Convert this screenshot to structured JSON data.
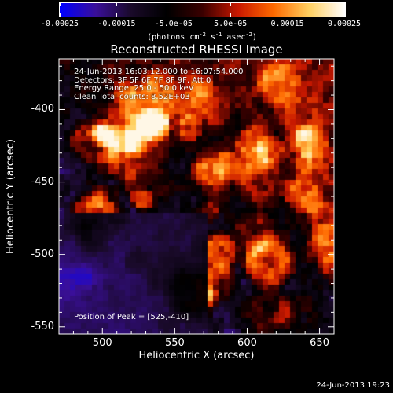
{
  "colorbar": {
    "tick_labels": [
      "-0.00025",
      "-0.00015",
      "-5.0e-05",
      "5.0e-05",
      "0.00015",
      "0.00025"
    ],
    "units_pre": "(photons cm",
    "units_exp1": "-2",
    "units_mid": " s",
    "units_exp2": "-1",
    "units_mid2": " asec",
    "units_exp3": "-2",
    "units_post": ")",
    "min": -0.00025,
    "max": 0.00025
  },
  "title": "Reconstructed RHESSI Image",
  "info": {
    "time_range": "24-Jun-2013 16:03:12.000 to 16:07:54.000",
    "detectors": "Detectors: 3F 5F 6F 7F 8F 9F, Att 0",
    "energy": "Energy Range: 25.0 - 50.0 keV",
    "clean": "Clean     Total counts: 8.52E+03"
  },
  "peak": "Position of Peak = [525,-410]",
  "axes": {
    "xlabel": "Heliocentric X (arcsec)",
    "ylabel": "Heliocentric Y (arcsec)",
    "x_ticks": [
      "500",
      "550",
      "600",
      "650"
    ],
    "y_ticks": [
      "-400",
      "-450",
      "-500",
      "-550"
    ]
  },
  "timestamp": "24-Jun-2013 19:23",
  "chart_data": {
    "type": "heatmap",
    "title": "Reconstructed RHESSI Image",
    "xlabel": "Heliocentric X (arcsec)",
    "ylabel": "Heliocentric Y (arcsec)",
    "xlim": [
      470,
      660
    ],
    "ylim": [
      -555,
      -365
    ],
    "x_ticks": [
      500,
      550,
      600,
      650
    ],
    "y_ticks": [
      -400,
      -450,
      -500,
      -550
    ],
    "colorbar_range": [
      -0.00025,
      0.00025
    ],
    "peak_position": [
      525,
      -410
    ],
    "colormap_stops": [
      "#0000ff",
      "#3a0f9a",
      "#1a0a2a",
      "#000000",
      "#3a0000",
      "#c81800",
      "#ff6a00",
      "#ffd060",
      "#ffffff"
    ]
  }
}
